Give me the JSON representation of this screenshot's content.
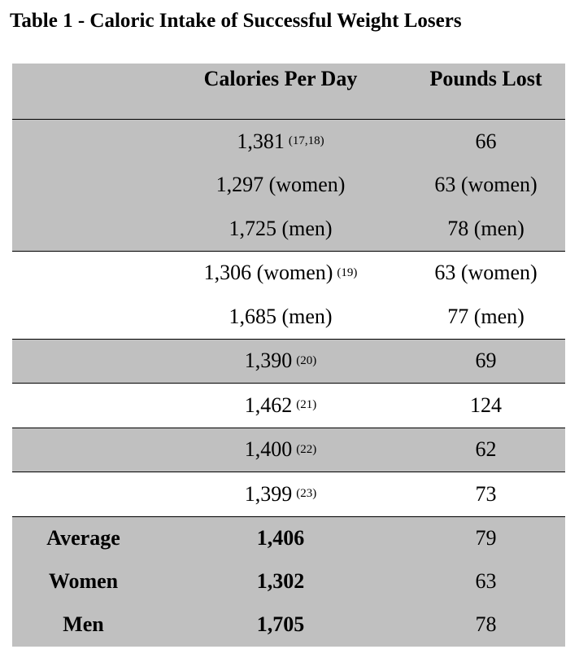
{
  "title": "Table 1 - Caloric Intake of Successful Weight Losers",
  "columns": {
    "label": "",
    "calories": "Calories Per Day",
    "pounds": "Pounds Lost"
  },
  "groups": [
    {
      "shaded": true,
      "rows": [
        {
          "calories": "1,381",
          "ref": "(17,18)",
          "pounds": "66"
        },
        {
          "calories": "1,297 (women)",
          "ref": "",
          "pounds": "63 (women)"
        },
        {
          "calories": "1,725 (men)",
          "ref": "",
          "pounds": "78 (men)"
        }
      ]
    },
    {
      "shaded": false,
      "rows": [
        {
          "calories": "1,306 (women)",
          "ref": "(19)",
          "pounds": "63 (women)"
        },
        {
          "calories": "1,685 (men)",
          "ref": "",
          "pounds": "77 (men)"
        }
      ]
    },
    {
      "shaded": true,
      "rows": [
        {
          "calories": "1,390",
          "ref": "(20)",
          "pounds": "69"
        }
      ]
    },
    {
      "shaded": false,
      "rows": [
        {
          "calories": "1,462",
          "ref": "(21)",
          "pounds": "124"
        }
      ]
    },
    {
      "shaded": true,
      "rows": [
        {
          "calories": "1,400",
          "ref": "(22)",
          "pounds": "62"
        }
      ]
    },
    {
      "shaded": false,
      "rows": [
        {
          "calories": "1,399",
          "ref": "(23)",
          "pounds": "73"
        }
      ]
    }
  ],
  "summary": [
    {
      "label": "Average",
      "calories": "1,406",
      "pounds": "79"
    },
    {
      "label": "Women",
      "calories": "1,302",
      "pounds": "63"
    },
    {
      "label": "Men",
      "calories": "1,705",
      "pounds": "78"
    }
  ],
  "colors": {
    "shade": "#c0c0c0",
    "border": "#000000"
  }
}
